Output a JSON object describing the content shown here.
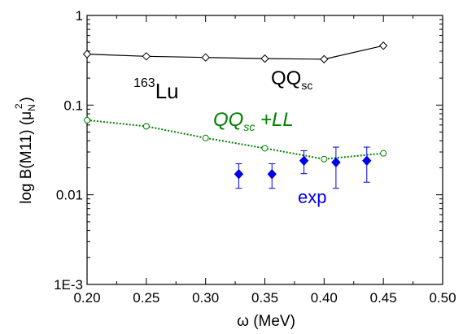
{
  "chart_data": {
    "type": "scatter",
    "title": "",
    "xlabel": "ω  (MeV)",
    "ylabel_main": "log B(M11) (μ",
    "ylabel_sub": "N",
    "ylabel_sup": "2",
    "ylabel_end": ")",
    "xlim": [
      0.2,
      0.5
    ],
    "ylim": [
      0.001,
      1
    ],
    "yscale": "log",
    "grid": false,
    "xticks": [
      {
        "value": 0.2,
        "label": "0.20"
      },
      {
        "value": 0.25,
        "label": "0.25"
      },
      {
        "value": 0.3,
        "label": "0.30"
      },
      {
        "value": 0.35,
        "label": "0.35"
      },
      {
        "value": 0.4,
        "label": "0.40"
      },
      {
        "value": 0.45,
        "label": "0.45"
      },
      {
        "value": 0.5,
        "label": "0.50"
      }
    ],
    "yticks": [
      {
        "value": 0.001,
        "label": "1E-3"
      },
      {
        "value": 0.01,
        "label": "0.01"
      },
      {
        "value": 0.1,
        "label": "0.1"
      },
      {
        "value": 1,
        "label": "1"
      }
    ],
    "series": [
      {
        "label_main": "QQ",
        "label_sub": "sc",
        "color": "#000000",
        "marker": "open-diamond",
        "line": "solid",
        "x": [
          0.2,
          0.25,
          0.3,
          0.35,
          0.4,
          0.45
        ],
        "y": [
          0.37,
          0.35,
          0.34,
          0.33,
          0.325,
          0.46
        ]
      },
      {
        "label_main": "QQ",
        "label_sub": "sc",
        "label_end": " +LL",
        "color": "#008000",
        "marker": "open-circle",
        "line": "dotted",
        "x": [
          0.2,
          0.25,
          0.3,
          0.35,
          0.4,
          0.45
        ],
        "y": [
          0.068,
          0.058,
          0.043,
          0.033,
          0.025,
          0.029
        ]
      },
      {
        "label_main": "exp",
        "color": "#0000ee",
        "marker": "filled-diamond",
        "line": "none",
        "x": [
          0.328,
          0.356,
          0.383,
          0.41,
          0.436
        ],
        "y": [
          0.017,
          0.017,
          0.024,
          0.023,
          0.024
        ],
        "y_err_low": [
          0.0118,
          0.0118,
          0.0172,
          0.0118,
          0.0138
        ],
        "y_err_high": [
          0.0222,
          0.0222,
          0.031,
          0.034,
          0.034
        ]
      }
    ],
    "annotations": {
      "nucleus_sup": "163",
      "nucleus": "Lu"
    }
  }
}
